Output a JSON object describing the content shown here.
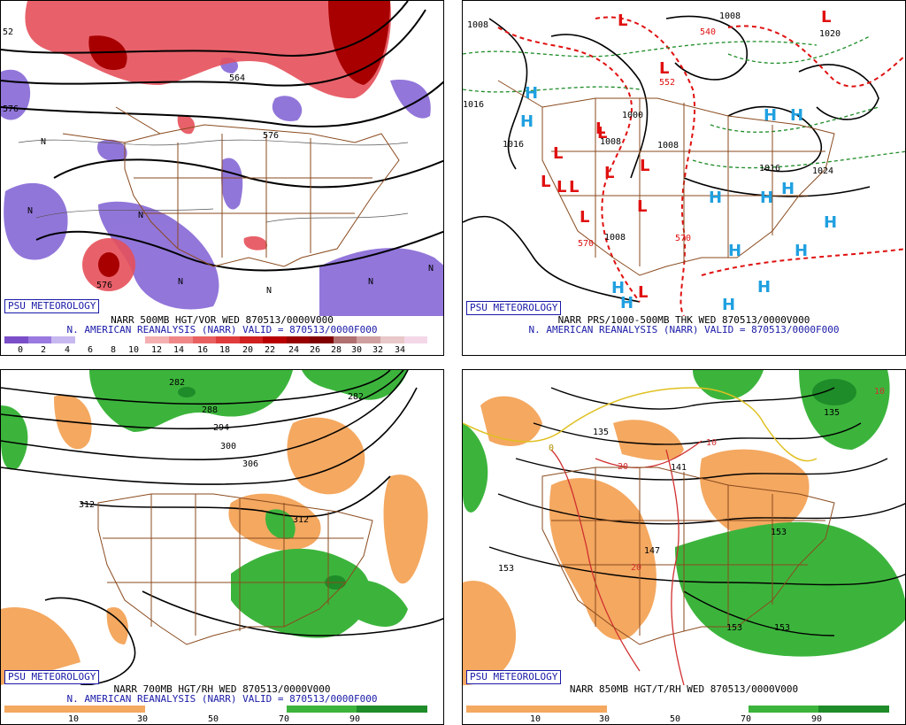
{
  "badge": "PSU METEOROLOGY",
  "colors": {
    "vort_neg": "#8c6fd8",
    "vort_pos": "#e5505a",
    "dry": "#f4a860",
    "moist": "#3cb43c",
    "moist_dark": "#1e8c28",
    "state_lines": "#8a4a1e",
    "low_symbol": "#e01010",
    "high_symbol": "#20a0e0",
    "badge_text": "#1a1aa8"
  },
  "panels": [
    {
      "id": "500mb",
      "title_line1": "NARR 500MB HGT/VOR WED 870513/0000V000",
      "title_line2": "N. AMERICAN REANALYSIS (NARR) VALID = 870513/0000F000",
      "colorbar_ticks": [
        "0",
        "2",
        "4",
        "6",
        "8",
        "10",
        "12",
        "14",
        "16",
        "18",
        "20",
        "22",
        "24",
        "26",
        "28",
        "30",
        "32",
        "34"
      ],
      "contour_labels": [
        "576",
        "576",
        "564",
        "576",
        "52",
        "N",
        "N",
        "N",
        "N",
        "N",
        "N",
        "N"
      ]
    },
    {
      "id": "thk",
      "title_line1": "NARR PRS/1000-500MB THK WED 870513/0000V000",
      "title_line2": "N. AMERICAN REANALYSIS (NARR) VALID = 870513/0000F000",
      "contour_labels": [
        "1008",
        "1008",
        "1016",
        "1016",
        "1000",
        "1008",
        "1008",
        "1008",
        "1016",
        "1020",
        "1024",
        "570",
        "570",
        "552",
        "540"
      ],
      "high_count": 17,
      "low_count": 14
    },
    {
      "id": "700mb",
      "title_line1": "NARR 700MB HGT/RH WED 870513/0000V000",
      "title_line2": "N. AMERICAN REANALYSIS (NARR) VALID = 870513/0000F000",
      "colorbar_ticks": [
        "10",
        "30",
        "50",
        "70",
        "90"
      ],
      "contour_labels": [
        "282",
        "288",
        "294",
        "300",
        "306",
        "312",
        "312",
        "282"
      ]
    },
    {
      "id": "850mb",
      "title_line1": "NARR 850MB HGT/T/RH WED 870513/0000V000",
      "colorbar_ticks": [
        "10",
        "30",
        "50",
        "70",
        "90"
      ],
      "contour_labels": [
        "135",
        "141",
        "147",
        "153",
        "153",
        "153",
        "153",
        "135",
        "10",
        "10",
        "20",
        "20",
        "0"
      ]
    }
  ]
}
